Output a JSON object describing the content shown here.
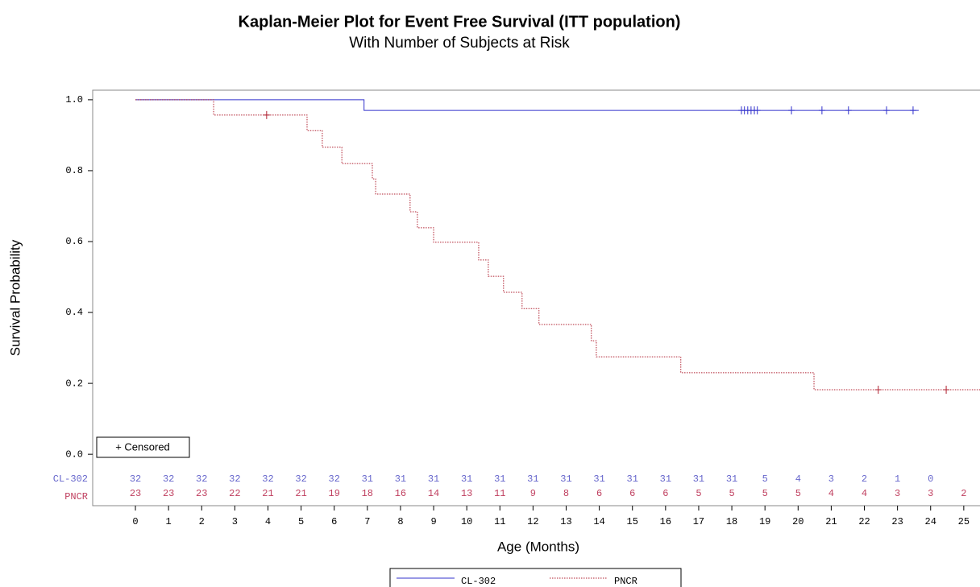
{
  "chart_data": {
    "type": "step",
    "title": "Kaplan-Meier Plot for Event Free Survival (ITT population)",
    "subtitle": "With Number of Subjects at Risk",
    "x_label": "Age (Months)",
    "y_label": "Survival Probability",
    "censored_label": "+ Censored",
    "xlim": [
      -1.29,
      25.49
    ],
    "ylim": [
      -0.145,
      1.027
    ],
    "xticks": [
      0,
      1,
      2,
      3,
      4,
      5,
      6,
      7,
      8,
      9,
      10,
      11,
      12,
      13,
      14,
      15,
      16,
      17,
      18,
      19,
      20,
      21,
      22,
      23,
      24,
      25
    ],
    "yticks": [
      {
        "value": 0,
        "label": "0.0"
      },
      0.2,
      0.4,
      0.6,
      0.8,
      {
        "value": 1,
        "label": "1.0"
      }
    ],
    "series": [
      {
        "name": "CL-302",
        "color": "#3333cc",
        "dash": "none",
        "label_color": "#6666cc",
        "x": [
          0,
          6.9,
          23.64
        ],
        "values": [
          1.0,
          0.97,
          0.97
        ],
        "censored_x": [
          18.29,
          18.38,
          18.48,
          18.58,
          18.68,
          18.77,
          19.8,
          20.72,
          21.52,
          22.67,
          23.47
        ],
        "censored_values": [
          0.97,
          0.97,
          0.97,
          0.97,
          0.97,
          0.97,
          0.97,
          0.97,
          0.97,
          0.97,
          0.97
        ],
        "at_risk": [
          32,
          32,
          32,
          32,
          32,
          32,
          32,
          31,
          31,
          31,
          31,
          31,
          31,
          31,
          31,
          31,
          31,
          31,
          31,
          5,
          4,
          3,
          2,
          1,
          0,
          null
        ]
      },
      {
        "name": "PNCR",
        "color": "#b02030",
        "dash": "1.5 1.5",
        "label_color": "#c04060",
        "x": [
          0,
          2.36,
          5.18,
          5.64,
          6.23,
          7.15,
          7.25,
          8.29,
          8.51,
          9.0,
          10.36,
          10.65,
          11.11,
          11.67,
          12.18,
          13.76,
          13.91,
          16.46,
          20.48,
          25.49
        ],
        "values": [
          1.0,
          0.957,
          0.913,
          0.866,
          0.82,
          0.777,
          0.734,
          0.684,
          0.639,
          0.598,
          0.548,
          0.502,
          0.457,
          0.411,
          0.366,
          0.32,
          0.275,
          0.23,
          0.182,
          0.182
        ],
        "censored_x": [
          3.96,
          22.42,
          24.47
        ],
        "censored_values": [
          0.957,
          0.182,
          0.182
        ],
        "at_risk": [
          23,
          23,
          23,
          22,
          21,
          21,
          19,
          18,
          16,
          14,
          13,
          11,
          9,
          8,
          6,
          6,
          6,
          5,
          5,
          5,
          5,
          4,
          4,
          3,
          3,
          2
        ]
      }
    ]
  }
}
